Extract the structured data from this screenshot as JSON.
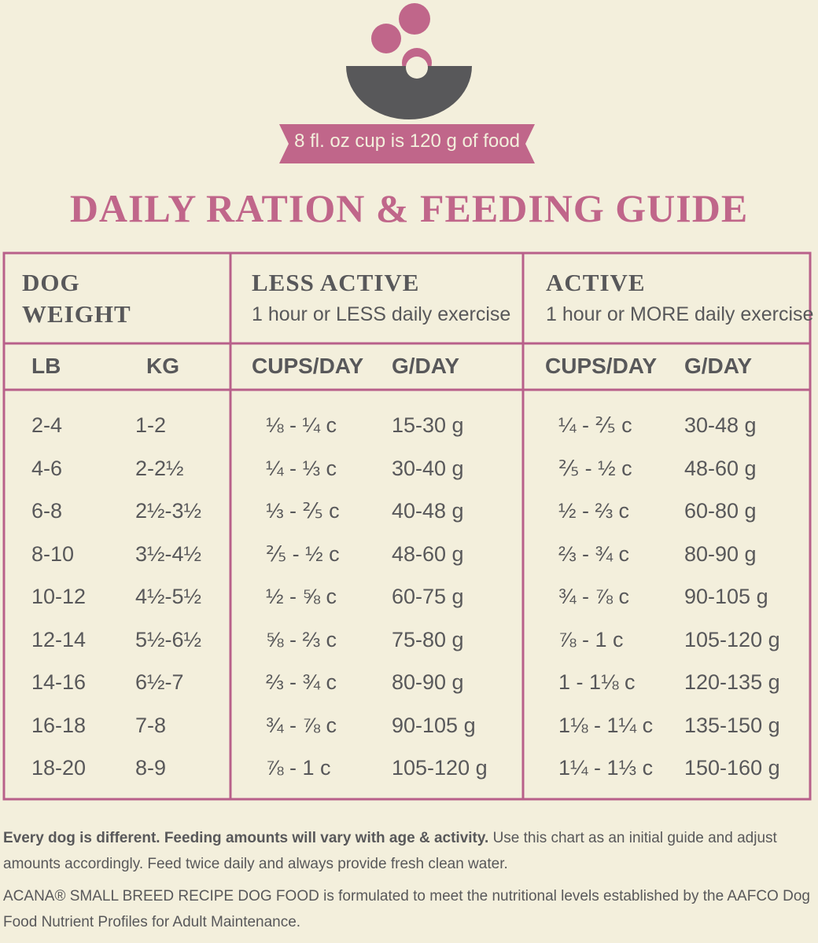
{
  "banner": "8 fl. oz cup is 120 g of food",
  "title": "DAILY RATION & FEEDING GUIDE",
  "table": {
    "groups": [
      {
        "title": "DOG WEIGHT"
      },
      {
        "title": "LESS ACTIVE",
        "subtitle": "1 hour or LESS daily exercise"
      },
      {
        "title": "ACTIVE",
        "subtitle": "1 hour or MORE daily exercise"
      }
    ],
    "columns": [
      "LB",
      "KG",
      "CUPS/DAY",
      "G/DAY",
      "CUPS/DAY",
      "G/DAY"
    ],
    "rows": [
      [
        "2-4",
        "1-2",
        "⅛ - ¼ c",
        "15-30 g",
        "¼ - ⅖ c",
        "30-48 g"
      ],
      [
        "4-6",
        "2-2½",
        "¼ - ⅓ c",
        "30-40 g",
        "⅖ - ½ c",
        "48-60 g"
      ],
      [
        "6-8",
        "2½-3½",
        "⅓ - ⅖ c",
        "40-48 g",
        "½ - ⅔ c",
        "60-80 g"
      ],
      [
        "8-10",
        "3½-4½",
        "⅖ - ½ c",
        "48-60 g",
        "⅔ - ¾ c",
        "80-90 g"
      ],
      [
        "10-12",
        "4½-5½",
        "½ - ⅝ c",
        "60-75 g",
        "¾ - ⅞ c",
        "90-105 g"
      ],
      [
        "12-14",
        "5½-6½",
        "⅝ - ⅔ c",
        "75-80 g",
        "⅞ - 1 c",
        "105-120 g"
      ],
      [
        "14-16",
        "6½-7",
        "⅔ - ¾ c",
        "80-90 g",
        "1 - 1⅛ c",
        "120-135 g"
      ],
      [
        "16-18",
        "7-8",
        "¾ - ⅞ c",
        "90-105 g",
        "1⅛ - 1¼ c",
        "135-150 g"
      ],
      [
        "18-20",
        "8-9",
        "⅞ - 1 c",
        "105-120 g",
        "1¼ - 1⅓ c",
        "150-160 g"
      ]
    ]
  },
  "footer": {
    "note_bold": "Every dog is different. Feeding amounts will vary with age & activity.",
    "note_rest": "Use this chart as an initial guide and adjust amounts accordingly. Feed twice daily and always provide fresh clean water.",
    "disclaimer": "ACANA® SMALL BREED RECIPE DOG FOOD is formulated to meet the nutritional levels established by the AAFCO Dog Food Nutrient Profiles for Adult Maintenance."
  }
}
